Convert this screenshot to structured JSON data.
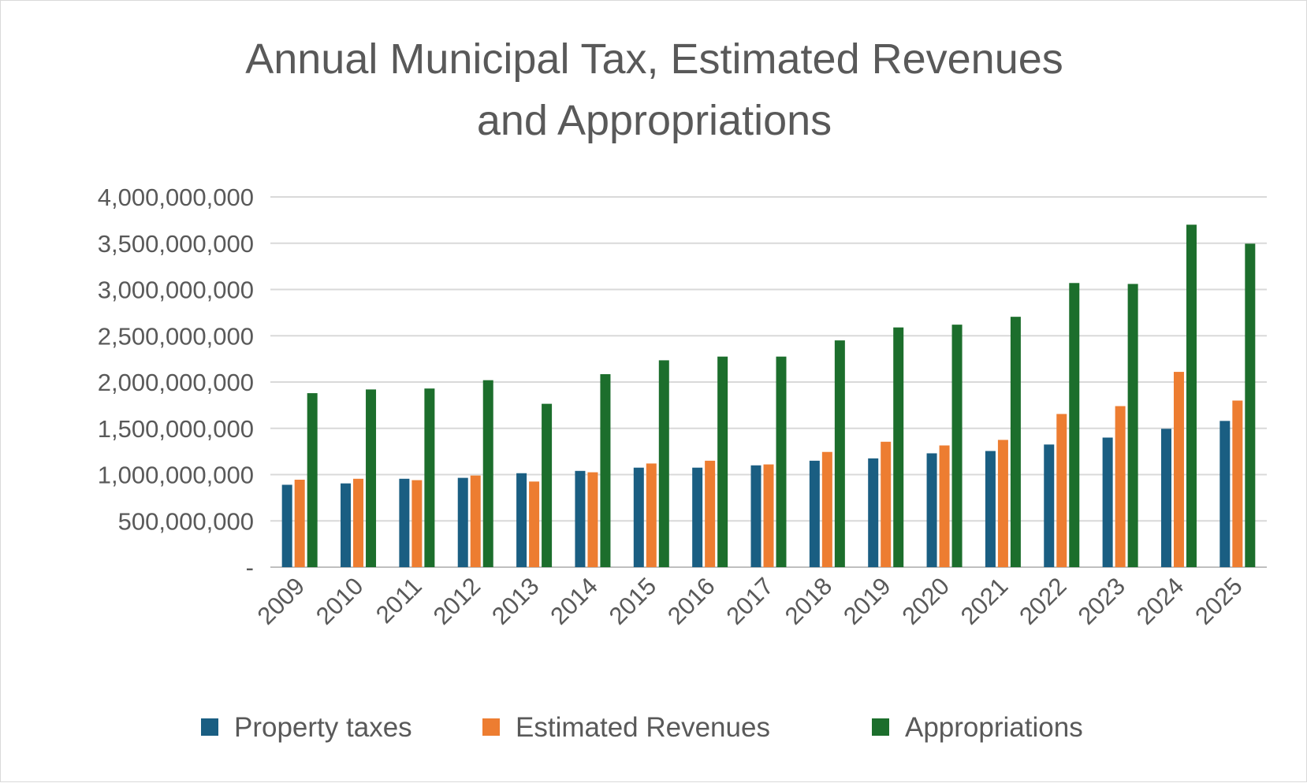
{
  "chart_data": {
    "type": "bar",
    "title": "Annual Municipal Tax, Estimated Revenues and Appropriations",
    "title_lines": [
      "Annual Municipal Tax, Estimated Revenues",
      "and Appropriations"
    ],
    "xlabel": "",
    "ylabel": "",
    "categories": [
      "2009",
      "2010",
      "2011",
      "2012",
      "2013",
      "2014",
      "2015",
      "2016",
      "2017",
      "2018",
      "2019",
      "2020",
      "2021",
      "2022",
      "2023",
      "2024",
      "2025"
    ],
    "series": [
      {
        "name": "Property taxes",
        "color": "#1a5e82",
        "values": [
          890000000,
          905000000,
          955000000,
          965000000,
          1015000000,
          1040000000,
          1075000000,
          1075000000,
          1100000000,
          1150000000,
          1175000000,
          1230000000,
          1255000000,
          1325000000,
          1400000000,
          1495000000,
          1580000000
        ]
      },
      {
        "name": "Estimated Revenues",
        "color": "#ed7d31",
        "values": [
          945000000,
          955000000,
          940000000,
          990000000,
          925000000,
          1025000000,
          1120000000,
          1150000000,
          1110000000,
          1245000000,
          1355000000,
          1315000000,
          1375000000,
          1655000000,
          1740000000,
          2110000000,
          1800000000
        ]
      },
      {
        "name": "Appropriations",
        "color": "#1c6e2c",
        "values": [
          1880000000,
          1920000000,
          1930000000,
          2020000000,
          1765000000,
          2085000000,
          2235000000,
          2275000000,
          2275000000,
          2450000000,
          2590000000,
          2620000000,
          2705000000,
          3070000000,
          3060000000,
          3700000000,
          3495000000
        ]
      }
    ],
    "ylim": [
      0,
      4000000000
    ],
    "yticks": [
      0,
      500000000,
      1000000000,
      1500000000,
      2000000000,
      2500000000,
      3000000000,
      3500000000,
      4000000000
    ],
    "ytick_labels": [
      "-",
      "500,000,000",
      "1,000,000,000",
      "1,500,000,000",
      "2,000,000,000",
      "2,500,000,000",
      "3,000,000,000",
      "3,500,000,000",
      "4,000,000,000"
    ],
    "grid": true,
    "legend_position": "bottom"
  }
}
